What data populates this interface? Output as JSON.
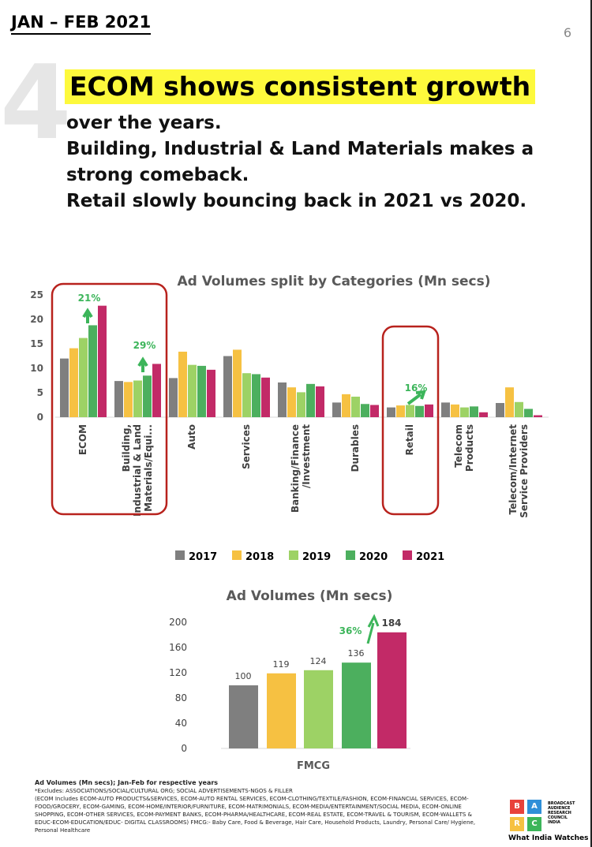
{
  "header": {
    "date": "JAN – FEB 2021",
    "page_number": "6",
    "big_number": "4"
  },
  "headline": {
    "highlight": "ECOM shows consistent growth",
    "lines": [
      "over the years.",
      "Building, Industrial & Land Materials makes a",
      "strong comeback.",
      "Retail slowly bouncing back in 2021 vs 2020."
    ]
  },
  "colors": {
    "2017": "#7f7f7f",
    "2018": "#f6c142",
    "2019": "#9dd265",
    "2020": "#4caf5e",
    "2021": "#c22a67",
    "highlight_box": "#b8221d",
    "growth": "#3cb55a"
  },
  "chart_data": [
    {
      "type": "bar",
      "title": "Ad Volumes split by Categories (Mn secs)",
      "ylim": [
        0,
        25
      ],
      "yticks": [
        "0",
        "5",
        "10",
        "15",
        "20",
        "25"
      ],
      "categories": [
        "ECOM",
        "Building, Industrial & Land Materials/Equi...",
        "Auto",
        "Services",
        "Banking/Finance /Investment",
        "Durables",
        "Retail",
        "Telecom Products",
        "Telecom/Internet Service Providers"
      ],
      "category_lines": [
        [
          "ECOM"
        ],
        [
          "Building,",
          "Industrial & Land",
          "Materials/Equi..."
        ],
        [
          "Auto"
        ],
        [
          "Services"
        ],
        [
          "Banking/Finance",
          "/Investment"
        ],
        [
          "Durables"
        ],
        [
          "Retail"
        ],
        [
          "Telecom",
          "Products"
        ],
        [
          "Telecom/Internet",
          "Service Providers"
        ]
      ],
      "series": [
        {
          "name": "2017",
          "values": [
            12.0,
            7.4,
            8.0,
            12.5,
            7.1,
            3.0,
            2.0,
            3.0,
            2.9
          ]
        },
        {
          "name": "2018",
          "values": [
            14.1,
            7.2,
            13.4,
            13.8,
            6.1,
            4.7,
            2.4,
            2.6,
            6.1
          ]
        },
        {
          "name": "2019",
          "values": [
            16.2,
            7.5,
            10.7,
            9.0,
            5.1,
            4.2,
            2.5,
            2.0,
            3.1
          ]
        },
        {
          "name": "2020",
          "values": [
            18.8,
            8.5,
            10.5,
            8.8,
            6.8,
            2.7,
            2.3,
            2.2,
            1.7
          ]
        },
        {
          "name": "2021",
          "values": [
            22.8,
            10.9,
            9.7,
            8.1,
            6.3,
            2.5,
            2.6,
            1.0,
            0.4
          ]
        }
      ],
      "annotations": [
        {
          "category": "ECOM",
          "text": "21%"
        },
        {
          "category": "Building, Industrial & Land Materials/Equi...",
          "text": "29%"
        },
        {
          "category": "Retail",
          "text": "16%"
        }
      ],
      "legend": [
        "2017",
        "2018",
        "2019",
        "2020",
        "2021"
      ],
      "legend_position": "bottom"
    },
    {
      "type": "bar",
      "title": "Ad Volumes (Mn secs)",
      "ylim": [
        0,
        200
      ],
      "yticks": [
        "0",
        "40",
        "80",
        "120",
        "160",
        "200"
      ],
      "xlabel": "FMCG",
      "categories": [
        "2017",
        "2018",
        "2019",
        "2020",
        "2021"
      ],
      "values": [
        100,
        119,
        124,
        136,
        184
      ],
      "labels": [
        "100",
        "119",
        "124",
        "136",
        "184"
      ],
      "annotation": "36%"
    }
  ],
  "footer": {
    "title": "Ad Volumes (Mn secs); Jan-Feb for respective years",
    "note": "*Excludes: ASSOCIATIONS/SOCIAL/CULTURAL ORG; SOCIAL ADVERTISEMENTS-NGOS & FILLER",
    "detail": "(ECOM Includes ECOM-AUTO PRODUCTS&SERVICES, ECOM-AUTO RENTAL SERVICES, ECOM-CLOTHING/TEXTILE/FASHION, ECOM-FINANCIAL SERVICES, ECOM-FOOD/GROCERY, ECOM-GAMING, ECOM-HOME/INTERIOR/FURNITURE, ECOM-MATRIMONIALS, ECOM-MEDIA/ENTERTAINMENT/SOCIAL MEDIA, ECOM-ONLINE SHOPPING, ECOM-OTHER SERVICES, ECOM-PAYMENT BANKS, ECOM-PHARMA/HEALTHCARE, ECOM-REAL ESTATE, ECOM-TRAVEL & TOURISM, ECOM-WALLETS & EDUC-ECOM-EDUCATION/EDUC- DIGITAL CLASSROOMS) FMCG:- Baby Care, Food & Beverage, Hair Care, Household Products, Laundry, Personal Care/ Hygiene, Personal Healthcare"
  },
  "logo": {
    "letters": [
      "B",
      "A",
      "R",
      "C"
    ],
    "text": "BROADCAST AUDIENCE RESEARCH COUNCIL INDIA",
    "tagline": "What India Watches"
  }
}
